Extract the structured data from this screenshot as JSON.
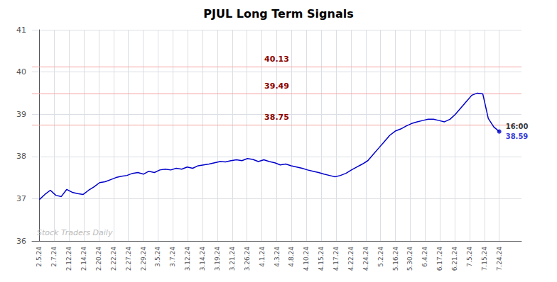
{
  "chart_data": {
    "type": "line",
    "title": "PJUL Long Term Signals",
    "color": "#0000cc",
    "grid": true,
    "x": [
      0,
      0.369048,
      0.738095,
      1.107143,
      1.47619,
      1.845238,
      2.214286,
      2.583333,
      2.952381,
      3.321429,
      3.690476,
      4.059524,
      4.428571,
      4.797619,
      5.166667,
      5.535714,
      5.904762,
      6.27381,
      6.642857,
      7.011905,
      7.380952,
      7.75,
      8.119048,
      8.488095,
      8.857143,
      9.22619,
      9.595238,
      9.964286,
      10.333333,
      10.702381,
      11.071429,
      11.440476,
      11.809524,
      12.178571,
      12.547619,
      12.916667,
      13.285714,
      13.654762,
      14.02381,
      14.392857,
      14.761905,
      15.130952,
      15.5,
      15.869048,
      16.238095,
      16.607143,
      16.97619,
      17.345238,
      17.714286,
      18.083333,
      18.452381,
      18.821429,
      19.190476,
      19.559524,
      19.928571,
      20.297619,
      20.666667,
      21.035714,
      21.404762,
      21.77381,
      22.142857,
      22.511905,
      22.880952,
      23.25,
      23.619048,
      23.988095,
      24.357143,
      24.72619,
      25.095238,
      25.464286,
      25.833333,
      26.202381,
      26.571429,
      26.940476,
      27.309524,
      27.678571,
      28.047619,
      28.416667,
      28.785714,
      29.154762,
      29.52381,
      29.892857,
      30.261905,
      30.630952,
      31
    ],
    "values": [
      36.98,
      37.1,
      37.2,
      37.08,
      37.05,
      37.22,
      37.15,
      37.12,
      37.1,
      37.2,
      37.28,
      37.38,
      37.4,
      37.45,
      37.5,
      37.53,
      37.55,
      37.6,
      37.62,
      37.58,
      37.65,
      37.62,
      37.68,
      37.7,
      37.68,
      37.72,
      37.7,
      37.75,
      37.72,
      37.78,
      37.8,
      37.82,
      37.85,
      37.88,
      37.87,
      37.9,
      37.92,
      37.9,
      37.95,
      37.93,
      37.88,
      37.92,
      37.88,
      37.85,
      37.8,
      37.82,
      37.78,
      37.75,
      37.72,
      37.68,
      37.65,
      37.62,
      37.58,
      37.55,
      37.52,
      37.55,
      37.6,
      37.68,
      37.75,
      37.82,
      37.9,
      38.05,
      38.2,
      38.35,
      38.5,
      38.6,
      38.65,
      38.72,
      38.78,
      38.82,
      38.85,
      38.88,
      38.88,
      38.85,
      38.82,
      38.88,
      39.0,
      39.15,
      39.3,
      39.45,
      39.5,
      39.48,
      38.9,
      38.7,
      38.59
    ],
    "xlim": [
      -0.5,
      32.5
    ],
    "xticks": [
      {
        "value": 0,
        "label": "2.5.24"
      },
      {
        "value": 1,
        "label": "2.7.24"
      },
      {
        "value": 2,
        "label": "2.12.24"
      },
      {
        "value": 3,
        "label": "2.14.24"
      },
      {
        "value": 4,
        "label": "2.20.24"
      },
      {
        "value": 5,
        "label": "2.22.24"
      },
      {
        "value": 6,
        "label": "2.27.24"
      },
      {
        "value": 7,
        "label": "2.29.24"
      },
      {
        "value": 8,
        "label": "3.5.24"
      },
      {
        "value": 9,
        "label": "3.7.24"
      },
      {
        "value": 10,
        "label": "3.12.24"
      },
      {
        "value": 11,
        "label": "3.14.24"
      },
      {
        "value": 12,
        "label": "3.19.24"
      },
      {
        "value": 13,
        "label": "3.21.24"
      },
      {
        "value": 14,
        "label": "3.26.24"
      },
      {
        "value": 15,
        "label": "4.1.24"
      },
      {
        "value": 16,
        "label": "4.3.24"
      },
      {
        "value": 17,
        "label": "4.8.24"
      },
      {
        "value": 18,
        "label": "4.10.24"
      },
      {
        "value": 19,
        "label": "4.15.24"
      },
      {
        "value": 20,
        "label": "4.17.24"
      },
      {
        "value": 21,
        "label": "4.22.24"
      },
      {
        "value": 22,
        "label": "4.24.24"
      },
      {
        "value": 23,
        "label": "5.2.24"
      },
      {
        "value": 24,
        "label": "5.16.24"
      },
      {
        "value": 25,
        "label": "5.30.24"
      },
      {
        "value": 26,
        "label": "6.4.24"
      },
      {
        "value": 27,
        "label": "6.17.24"
      },
      {
        "value": 28,
        "label": "6.21.24"
      },
      {
        "value": 29,
        "label": "7.5.24"
      },
      {
        "value": 30,
        "label": "7.15.24"
      },
      {
        "value": 31,
        "label": "7.24.24"
      }
    ],
    "ylim": [
      36,
      41
    ],
    "yticks": [
      36,
      37,
      38,
      39,
      40,
      41
    ],
    "hlines": [
      {
        "y": 40.13,
        "label": "40.13",
        "color": "#f4a0a0",
        "label_color": "#8b0000"
      },
      {
        "y": 39.49,
        "label": "39.49",
        "color": "#f4a0a0",
        "label_color": "#8b0000"
      },
      {
        "y": 38.75,
        "label": "38.75",
        "color": "#f4a0a0",
        "label_color": "#8b0000"
      }
    ],
    "last_price_label": {
      "text": "16:00",
      "color": "#000000"
    },
    "last_price_value": {
      "text": "38.59",
      "color": "#0000cc"
    },
    "watermark": {
      "text": "Stock Traders Daily",
      "color": "#bbbbbb"
    }
  }
}
